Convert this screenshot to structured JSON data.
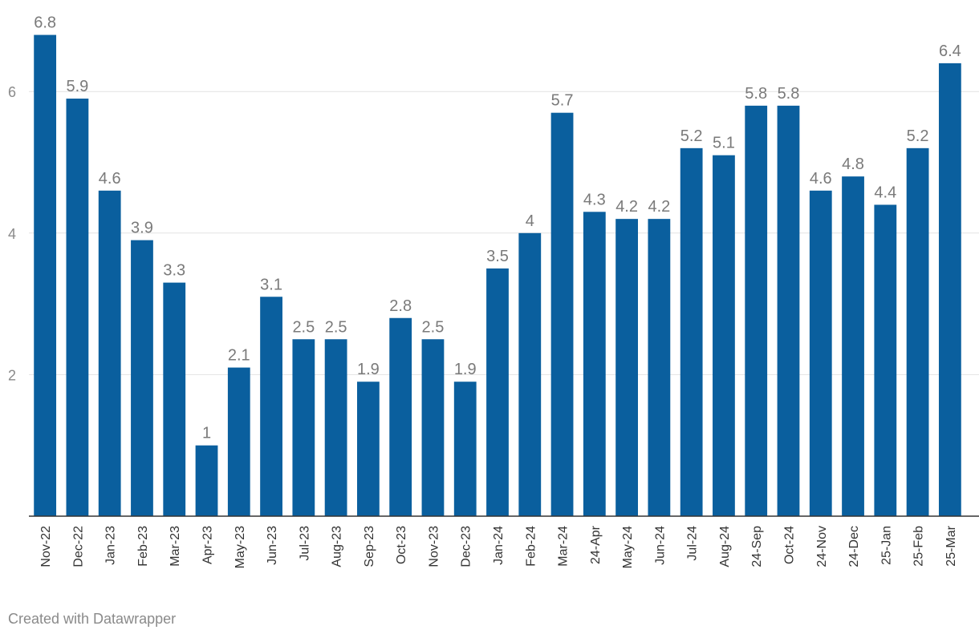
{
  "chart_data": {
    "type": "bar",
    "categories": [
      "Nov-22",
      "Dec-22",
      "Jan-23",
      "Feb-23",
      "Mar-23",
      "Apr-23",
      "May-23",
      "Jun-23",
      "Jul-23",
      "Aug-23",
      "Sep-23",
      "Oct-23",
      "Nov-23",
      "Dec-23",
      "Jan-24",
      "Feb-24",
      "Mar-24",
      "24-Apr",
      "May-24",
      "Jun-24",
      "Jul-24",
      "Aug-24",
      "24-Sep",
      "Oct-24",
      "24-Nov",
      "24-Dec",
      "25-Jan",
      "25-Feb",
      "25-Mar"
    ],
    "values": [
      6.8,
      5.9,
      4.6,
      3.9,
      3.3,
      1,
      2.1,
      3.1,
      2.5,
      2.5,
      1.9,
      2.8,
      2.5,
      1.9,
      3.5,
      4,
      5.7,
      4.3,
      4.2,
      4.2,
      5.2,
      5.1,
      5.8,
      5.8,
      4.6,
      4.8,
      4.4,
      5.2,
      6.4
    ],
    "yticks": [
      2,
      4,
      6
    ],
    "ylim": [
      0,
      7.2
    ],
    "title": "",
    "xlabel": "",
    "ylabel": "",
    "bar_color": "#0a5f9e",
    "grid": true
  },
  "footer": {
    "credit": "Created with Datawrapper"
  }
}
